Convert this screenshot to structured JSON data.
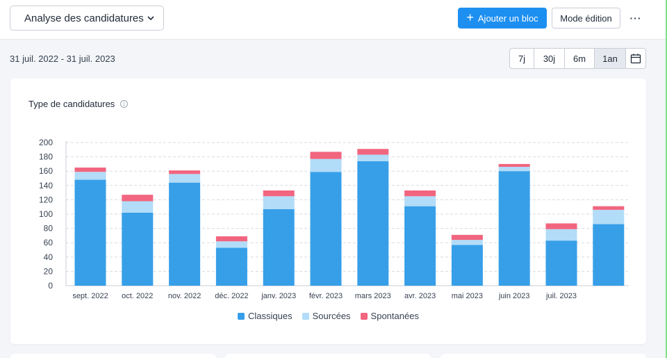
{
  "header": {
    "dashboard_select": "Analyse des candidatures",
    "add_block_label": "Ajouter un bloc",
    "edit_mode_label": "Mode édition",
    "more_label": "···"
  },
  "filters": {
    "date_range": "31 juil. 2022 - 31 juil. 2023",
    "periods": [
      {
        "label": "7j",
        "active": false
      },
      {
        "label": "30j",
        "active": false
      },
      {
        "label": "6m",
        "active": false
      },
      {
        "label": "1an",
        "active": true
      }
    ]
  },
  "card": {
    "title": "Type de candidatures",
    "info_icon": "info-icon"
  },
  "colors": {
    "classiques": "#379fe8",
    "sourcees": "#b2dcf8",
    "spontanees": "#f2657f",
    "accent": "#1d8ff0"
  },
  "chart_data": {
    "type": "bar",
    "stacked": true,
    "categories": [
      "sept. 2022",
      "oct. 2022",
      "nov. 2022",
      "déc. 2022",
      "janv. 2023",
      "févr. 2023",
      "mars 2023",
      "avr. 2023",
      "mai 2023",
      "juin 2023",
      "juil. 2023"
    ],
    "series": [
      {
        "name": "Classiques",
        "color": "#379fe8",
        "values": [
          148,
          102,
          144,
          53,
          107,
          159,
          174,
          111,
          57,
          160,
          63
        ]
      },
      {
        "name": "Sourcées",
        "color": "#b2dcf8",
        "values": [
          11,
          16,
          12,
          9,
          18,
          18,
          9,
          14,
          7,
          6,
          16
        ]
      },
      {
        "name": "Spontanées",
        "color": "#f2657f",
        "values": [
          6,
          9,
          5,
          7,
          8,
          10,
          8,
          8,
          7,
          4,
          8
        ]
      }
    ],
    "extra_partial_bar": {
      "values": [
        86,
        20,
        5
      ]
    },
    "y_ticks": [
      "0",
      "20",
      "40",
      "60",
      "80",
      "100",
      "120",
      "140",
      "160",
      "180",
      "200"
    ],
    "ylim": [
      0,
      200
    ],
    "grid": true,
    "legend_position": "bottom-center"
  }
}
